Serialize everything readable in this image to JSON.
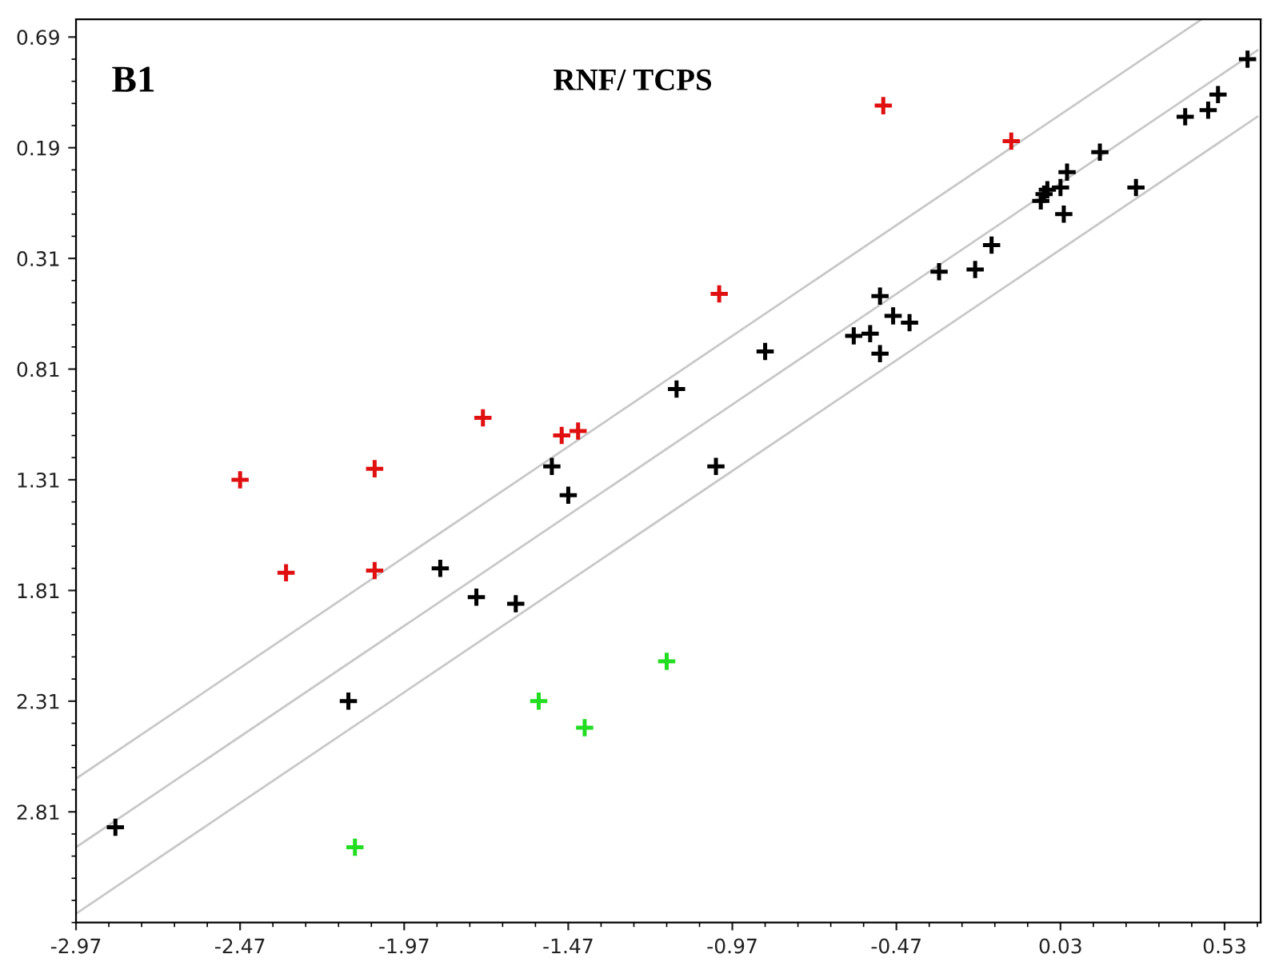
{
  "chart_data": {
    "type": "scatter",
    "title": "RNF/ TCPS",
    "annotations": [
      "B1"
    ],
    "marker": "cross",
    "grid": false,
    "legend": false,
    "xlim": [
      -2.97,
      0.64
    ],
    "ylim": [
      3.31,
      -0.77
    ],
    "xticks": [
      -2.97,
      -2.47,
      -1.97,
      -1.47,
      -0.97,
      -0.47,
      0.03,
      0.53
    ],
    "yticks": [
      {
        "value": -0.69,
        "label": "0.69"
      },
      {
        "value": -0.19,
        "label": "0.19"
      },
      0.31,
      0.81,
      1.31,
      1.81,
      2.31,
      2.81
    ],
    "series": [
      {
        "color": "#c8c8c8",
        "type": "line",
        "marker": "none",
        "x": [
          -2.97,
          0.46
        ],
        "values": [
          2.66,
          -0.77
        ]
      },
      {
        "color": "#c8c8c8",
        "type": "line",
        "marker": "none",
        "x": [
          -2.97,
          0.63
        ],
        "values": [
          2.97,
          -0.63
        ]
      },
      {
        "color": "#c8c8c8",
        "type": "line",
        "marker": "none",
        "x": [
          -2.97,
          0.63
        ],
        "values": [
          3.27,
          -0.33
        ]
      },
      {
        "color": "#000000",
        "x": [
          -2.85,
          -2.14,
          -1.86,
          -1.75,
          -1.63,
          -1.52,
          -1.47,
          -1.14,
          -1.02,
          -0.87,
          -0.6,
          -0.55,
          -0.52,
          -0.52,
          -0.48,
          -0.43,
          -0.34,
          -0.23,
          -0.18,
          -0.03,
          -0.02,
          -0.01,
          0.03,
          0.04,
          0.05,
          0.15,
          0.26,
          0.41,
          0.48,
          0.51,
          0.6
        ],
        "values": [
          2.88,
          2.31,
          1.71,
          1.84,
          1.87,
          1.25,
          1.38,
          0.9,
          1.25,
          0.73,
          0.66,
          0.65,
          0.48,
          0.74,
          0.57,
          0.6,
          0.37,
          0.36,
          0.25,
          0.05,
          0.02,
          0.0,
          -0.01,
          0.11,
          -0.08,
          -0.17,
          -0.01,
          -0.33,
          -0.36,
          -0.43,
          -0.59
        ]
      },
      {
        "color": "#e01010",
        "x": [
          -2.47,
          -2.06,
          -2.33,
          -2.06,
          -1.73,
          -1.49,
          -1.44,
          -1.01,
          -0.51,
          -0.12
        ],
        "values": [
          1.31,
          1.26,
          1.73,
          1.72,
          1.03,
          1.11,
          1.09,
          0.47,
          -0.38,
          -0.22
        ]
      },
      {
        "color": "#22dd22",
        "x": [
          -1.56,
          -1.42,
          -2.12,
          -1.17
        ],
        "values": [
          2.31,
          2.43,
          2.97,
          2.13
        ]
      }
    ]
  }
}
